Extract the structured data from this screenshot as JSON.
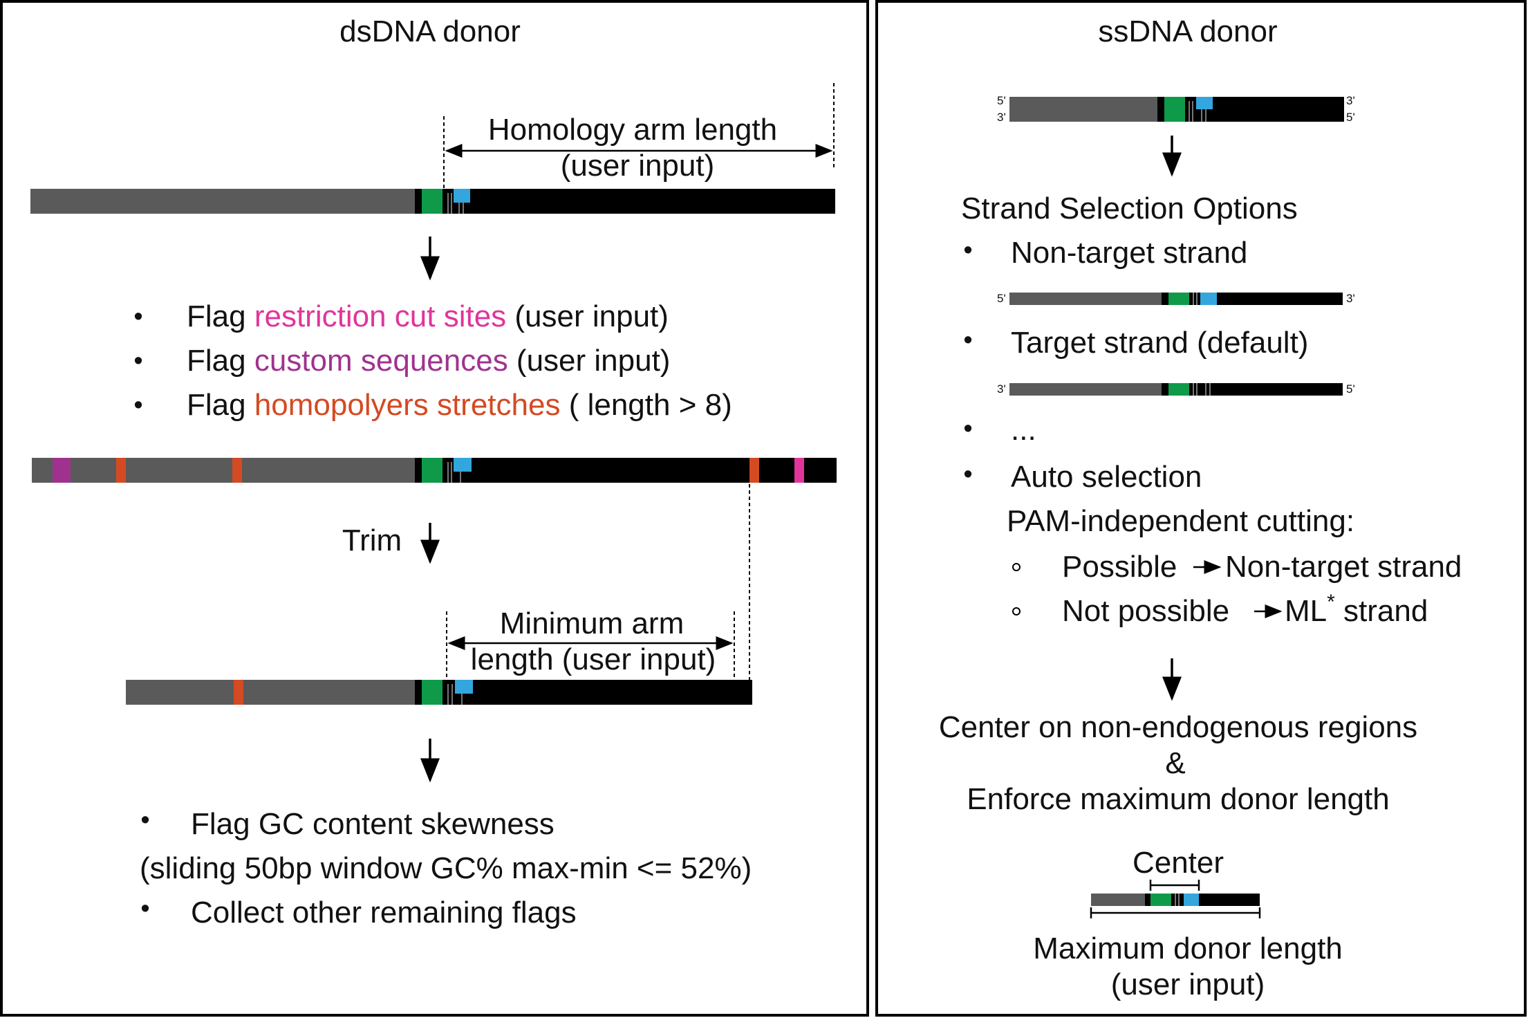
{
  "colors": {
    "grey": "#5a5a5b",
    "black": "#000000",
    "green": "#0f9a4a",
    "blue": "#33a6dd",
    "magenta": "#e0359a",
    "purple": "#a0328f",
    "orange": "#d44a22"
  },
  "left": {
    "title": "dsDNA donor",
    "homology_arm_label_1": "Homology arm length",
    "homology_arm_label_2": "(user input)",
    "flags": [
      {
        "prefix": "Flag ",
        "highlight": "restriction cut sites",
        "suffix": " (user input)",
        "color": "#e0359a"
      },
      {
        "prefix": "Flag ",
        "highlight": "custom sequences",
        "suffix": " (user input)",
        "color": "#a0328f"
      },
      {
        "prefix": "Flag ",
        "highlight": "homopolyers stretches",
        "suffix": " ( length > 8)",
        "color": "#d44a22"
      }
    ],
    "trim_label": "Trim",
    "min_arm_label_1": "Minimum arm",
    "min_arm_label_2": "length (user input)",
    "gc_flag": "Flag GC content skewness",
    "gc_detail": "(sliding 50bp window GC% max-min <= 52%)",
    "collect_flag": "Collect other remaining flags"
  },
  "right": {
    "title": "ssDNA donor",
    "end_5": "5'",
    "end_3": "3'",
    "strand_header": "Strand Selection Options",
    "option_nontarget": "Non-target strand",
    "option_target": "Target strand (default)",
    "option_more": "...",
    "option_auto": "Auto selection",
    "pam_label": "PAM-independent cutting:",
    "possible_left": "Possible",
    "possible_right": "Non-target strand",
    "not_possible_left": "Not possible",
    "not_possible_ml": "ML",
    "not_possible_star": "*",
    "not_possible_right": " strand",
    "center_line_1": "Center on non-endogenous regions",
    "center_line_2": "&",
    "center_line_3": "Enforce maximum donor length",
    "center_label": "Center",
    "max_label_1": "Maximum donor length",
    "max_label_2": "(user input)"
  }
}
